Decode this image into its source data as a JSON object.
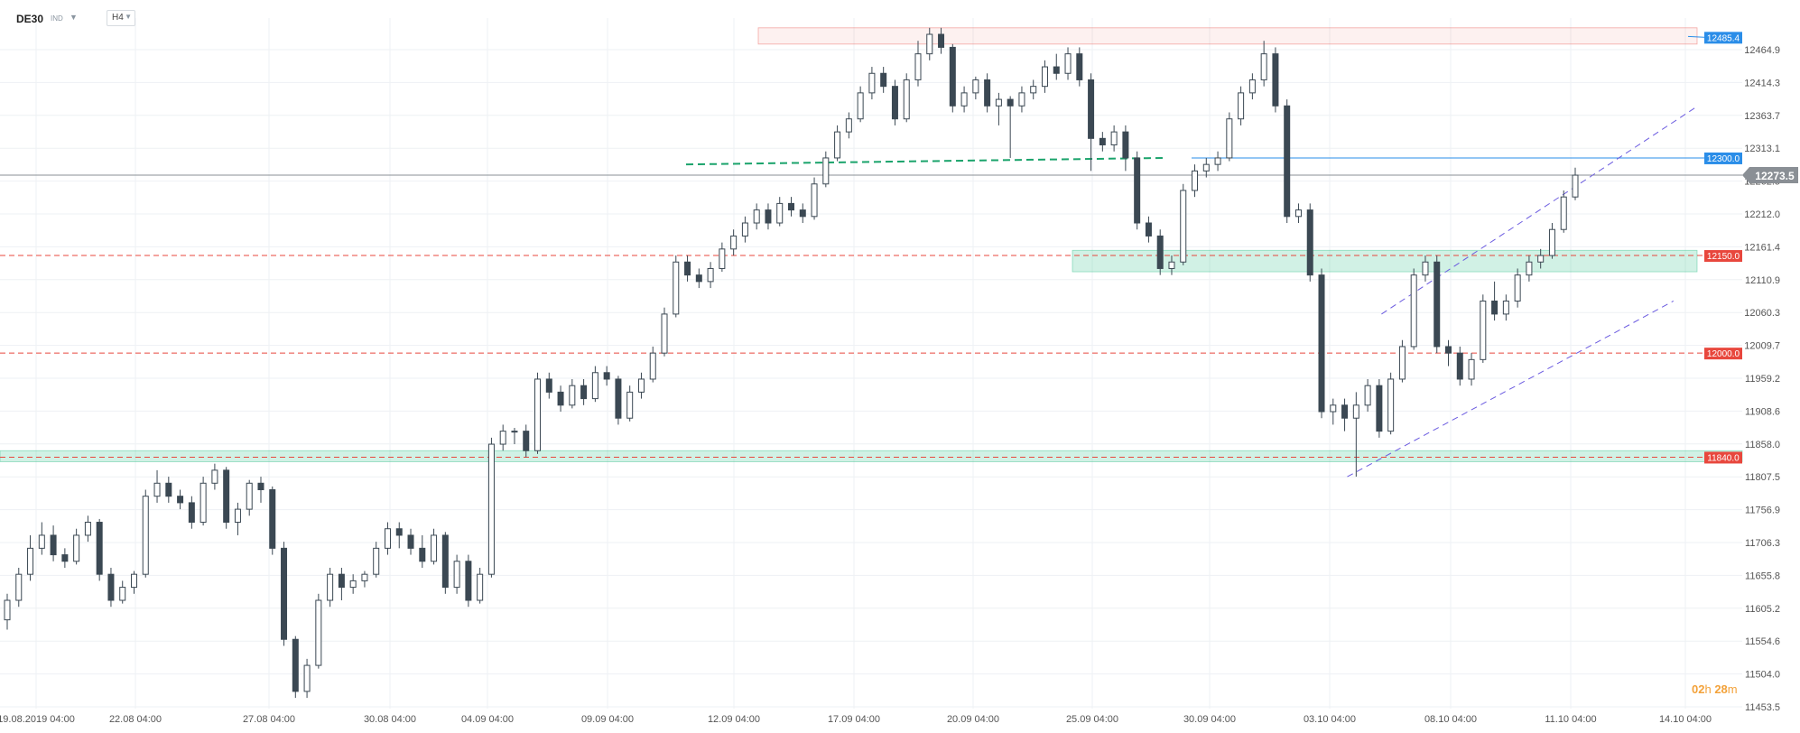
{
  "toolbar": {
    "symbol": "DE30",
    "badge": "IND",
    "timeframe": "H4"
  },
  "countdown": {
    "hours": "02",
    "h_unit": "h",
    "minutes": "28",
    "m_unit": "m"
  },
  "current_price_label": "12273.5",
  "colors": {
    "bull": "#ffffff",
    "bear": "#3b4853",
    "wick": "#3b4853",
    "resistance": "#e8473d",
    "support_zone": "#2fbf8a",
    "blue_line": "#2a8de8",
    "channel": "#6b5be0",
    "grid": "#eef1f4"
  },
  "chart_data": {
    "type": "candlestick",
    "ylim": [
      11453.5,
      12515
    ],
    "y_ticks": [
      "12464.9",
      "12414.3",
      "12363.7",
      "12313.1",
      "12262.5",
      "12212.0",
      "12161.4",
      "12110.9",
      "12060.3",
      "12009.7",
      "11959.2",
      "11908.6",
      "11858.0",
      "11807.5",
      "11756.9",
      "11706.3",
      "11655.8",
      "11605.2",
      "11554.6",
      "11504.0",
      "11453.5"
    ],
    "x_ticks": [
      "19.08.2019  04:00",
      "22.08  04:00",
      "27.08  04:00",
      "30.08  04:00",
      "04.09  04:00",
      "09.09  04:00",
      "12.09  04:00",
      "17.09  04:00",
      "20.09  04:00",
      "25.09  04:00",
      "30.09  04:00",
      "03.10  04:00",
      "08.10  04:00",
      "11.10  04:00",
      "14.10  04:00"
    ],
    "horizontal_levels": [
      {
        "label": "12485.4",
        "price": 12485.4,
        "style": "zone-resistance"
      },
      {
        "label": "12300.0",
        "price": 12300.0,
        "style": "blue"
      },
      {
        "label": "12150.0",
        "price": 12150.0,
        "style": "red-dashed"
      },
      {
        "label": "12000.0",
        "price": 12000.0,
        "style": "red-dashed"
      },
      {
        "label": "11840.0",
        "price": 11840.0,
        "style": "red-dashed"
      }
    ],
    "current_price": 12273.5,
    "zones": [
      {
        "from_bar": 0.8,
        "to_bar": 95,
        "low": 12475,
        "high": 12500,
        "kind": "resistance"
      },
      {
        "from_bar": 130,
        "to_bar": 210,
        "low": 12125,
        "high": 12158,
        "kind": "support"
      },
      {
        "from_bar": 0,
        "to_bar": 215,
        "low": 11833,
        "high": 11850,
        "kind": "support-thin"
      }
    ],
    "trend_lines": [
      {
        "kind": "green-dashed",
        "from": [
          83,
          12290
        ],
        "to": [
          142,
          12300
        ]
      },
      {
        "kind": "channel-upper",
        "from": [
          168,
          12060
        ],
        "to": [
          210,
          12380
        ]
      },
      {
        "kind": "channel-lower",
        "from": [
          165,
          11810
        ],
        "to": [
          206,
          12080
        ]
      }
    ],
    "candles": [
      [
        11590,
        11620,
        11575,
        11630
      ],
      [
        11620,
        11660,
        11610,
        11670
      ],
      [
        11660,
        11700,
        11650,
        11720
      ],
      [
        11700,
        11720,
        11690,
        11740
      ],
      [
        11720,
        11690,
        11680,
        11735
      ],
      [
        11690,
        11680,
        11670,
        11700
      ],
      [
        11680,
        11720,
        11675,
        11730
      ],
      [
        11720,
        11740,
        11710,
        11750
      ],
      [
        11740,
        11660,
        11650,
        11745
      ],
      [
        11660,
        11620,
        11610,
        11670
      ],
      [
        11620,
        11640,
        11615,
        11650
      ],
      [
        11640,
        11660,
        11630,
        11665
      ],
      [
        11660,
        11780,
        11655,
        11790
      ],
      [
        11780,
        11800,
        11770,
        11820
      ],
      [
        11800,
        11780,
        11770,
        11810
      ],
      [
        11780,
        11770,
        11760,
        11790
      ],
      [
        11770,
        11740,
        11730,
        11780
      ],
      [
        11740,
        11800,
        11735,
        11810
      ],
      [
        11800,
        11820,
        11790,
        11830
      ],
      [
        11820,
        11740,
        11730,
        11825
      ],
      [
        11740,
        11760,
        11720,
        11770
      ],
      [
        11760,
        11800,
        11750,
        11805
      ],
      [
        11800,
        11790,
        11770,
        11810
      ],
      [
        11790,
        11700,
        11690,
        11795
      ],
      [
        11700,
        11560,
        11550,
        11710
      ],
      [
        11560,
        11480,
        11470,
        11565
      ],
      [
        11480,
        11520,
        11470,
        11530
      ],
      [
        11520,
        11620,
        11515,
        11630
      ],
      [
        11620,
        11660,
        11610,
        11670
      ],
      [
        11660,
        11640,
        11620,
        11670
      ],
      [
        11640,
        11650,
        11630,
        11660
      ],
      [
        11650,
        11660,
        11640,
        11665
      ],
      [
        11660,
        11700,
        11655,
        11710
      ],
      [
        11700,
        11730,
        11690,
        11740
      ],
      [
        11730,
        11720,
        11700,
        11740
      ],
      [
        11720,
        11700,
        11690,
        11730
      ],
      [
        11700,
        11680,
        11670,
        11720
      ],
      [
        11680,
        11720,
        11675,
        11730
      ],
      [
        11720,
        11640,
        11630,
        11725
      ],
      [
        11640,
        11680,
        11630,
        11690
      ],
      [
        11680,
        11620,
        11610,
        11690
      ],
      [
        11620,
        11660,
        11615,
        11670
      ],
      [
        11660,
        11860,
        11655,
        11870
      ],
      [
        11860,
        11880,
        11850,
        11890
      ],
      [
        11880,
        11880,
        11860,
        11885
      ],
      [
        11880,
        11850,
        11840,
        11890
      ],
      [
        11850,
        11960,
        11845,
        11970
      ],
      [
        11960,
        11940,
        11930,
        11970
      ],
      [
        11940,
        11920,
        11910,
        11950
      ],
      [
        11920,
        11950,
        11915,
        11960
      ],
      [
        11950,
        11930,
        11920,
        11960
      ],
      [
        11930,
        11970,
        11925,
        11980
      ],
      [
        11970,
        11960,
        11950,
        11980
      ],
      [
        11960,
        11900,
        11890,
        11965
      ],
      [
        11900,
        11940,
        11895,
        11950
      ],
      [
        11940,
        11960,
        11930,
        11970
      ],
      [
        11960,
        12000,
        11955,
        12010
      ],
      [
        12000,
        12060,
        11995,
        12070
      ],
      [
        12060,
        12140,
        12055,
        12150
      ],
      [
        12140,
        12120,
        12110,
        12150
      ],
      [
        12120,
        12110,
        12100,
        12130
      ],
      [
        12110,
        12130,
        12100,
        12140
      ],
      [
        12130,
        12160,
        12125,
        12170
      ],
      [
        12160,
        12180,
        12150,
        12190
      ],
      [
        12180,
        12200,
        12170,
        12210
      ],
      [
        12200,
        12220,
        12190,
        12230
      ],
      [
        12220,
        12200,
        12190,
        12230
      ],
      [
        12200,
        12230,
        12195,
        12240
      ],
      [
        12230,
        12220,
        12210,
        12240
      ],
      [
        12220,
        12210,
        12200,
        12230
      ],
      [
        12210,
        12260,
        12205,
        12270
      ],
      [
        12260,
        12300,
        12255,
        12310
      ],
      [
        12300,
        12340,
        12295,
        12350
      ],
      [
        12340,
        12360,
        12330,
        12370
      ],
      [
        12360,
        12400,
        12355,
        12410
      ],
      [
        12400,
        12430,
        12390,
        12440
      ],
      [
        12430,
        12410,
        12400,
        12440
      ],
      [
        12410,
        12360,
        12350,
        12420
      ],
      [
        12360,
        12420,
        12355,
        12430
      ],
      [
        12420,
        12460,
        12410,
        12480
      ],
      [
        12460,
        12490,
        12450,
        12500
      ],
      [
        12490,
        12470,
        12460,
        12500
      ],
      [
        12470,
        12380,
        12370,
        12475
      ],
      [
        12380,
        12400,
        12370,
        12410
      ],
      [
        12400,
        12420,
        12390,
        12425
      ],
      [
        12420,
        12380,
        12370,
        12430
      ],
      [
        12380,
        12390,
        12350,
        12400
      ],
      [
        12390,
        12380,
        12300,
        12395
      ],
      [
        12380,
        12400,
        12370,
        12410
      ],
      [
        12400,
        12410,
        12390,
        12420
      ],
      [
        12410,
        12440,
        12400,
        12450
      ],
      [
        12440,
        12430,
        12420,
        12460
      ],
      [
        12430,
        12460,
        12420,
        12470
      ],
      [
        12460,
        12420,
        12410,
        12470
      ],
      [
        12420,
        12330,
        12280,
        12430
      ],
      [
        12330,
        12320,
        12310,
        12340
      ],
      [
        12320,
        12340,
        12310,
        12350
      ],
      [
        12340,
        12300,
        12280,
        12350
      ],
      [
        12300,
        12200,
        12190,
        12310
      ],
      [
        12200,
        12180,
        12170,
        12210
      ],
      [
        12180,
        12130,
        12120,
        12190
      ],
      [
        12130,
        12140,
        12120,
        12150
      ],
      [
        12140,
        12250,
        12135,
        12260
      ],
      [
        12250,
        12280,
        12240,
        12290
      ],
      [
        12280,
        12290,
        12270,
        12300
      ],
      [
        12290,
        12300,
        12280,
        12310
      ],
      [
        12300,
        12360,
        12295,
        12370
      ],
      [
        12360,
        12400,
        12350,
        12410
      ],
      [
        12400,
        12420,
        12390,
        12430
      ],
      [
        12420,
        12460,
        12410,
        12480
      ],
      [
        12460,
        12380,
        12370,
        12470
      ],
      [
        12380,
        12210,
        12200,
        12390
      ],
      [
        12210,
        12220,
        12200,
        12230
      ],
      [
        12220,
        12120,
        12110,
        12230
      ],
      [
        12120,
        11910,
        11900,
        12130
      ],
      [
        11910,
        11920,
        11890,
        11930
      ],
      [
        11920,
        11900,
        11880,
        11930
      ],
      [
        11900,
        11920,
        11810,
        11940
      ],
      [
        11920,
        11950,
        11910,
        11960
      ],
      [
        11950,
        11880,
        11870,
        11960
      ],
      [
        11880,
        11960,
        11875,
        11970
      ],
      [
        11960,
        12010,
        11955,
        12020
      ],
      [
        12010,
        12120,
        12005,
        12130
      ],
      [
        12120,
        12140,
        12110,
        12150
      ],
      [
        12140,
        12010,
        12000,
        12150
      ],
      [
        12010,
        12000,
        11980,
        12020
      ],
      [
        12000,
        11960,
        11950,
        12010
      ],
      [
        11960,
        11990,
        11950,
        12000
      ],
      [
        11990,
        12080,
        11985,
        12090
      ],
      [
        12080,
        12060,
        12050,
        12110
      ],
      [
        12060,
        12080,
        12050,
        12090
      ],
      [
        12080,
        12120,
        12070,
        12130
      ],
      [
        12120,
        12140,
        12110,
        12150
      ],
      [
        12140,
        12150,
        12130,
        12160
      ],
      [
        12150,
        12190,
        12145,
        12200
      ],
      [
        12190,
        12240,
        12185,
        12250
      ],
      [
        12240,
        12273.5,
        12235,
        12285
      ]
    ]
  }
}
